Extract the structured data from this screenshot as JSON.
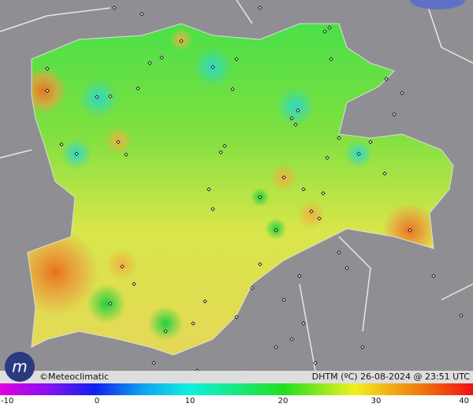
{
  "credit": "©Meteoclimatic",
  "caption": "DHTM (ºC) 26-08-2024 @ 23:51 UTC",
  "colorbar": {
    "range": [
      -10,
      40
    ],
    "ticks": [
      -10,
      0,
      10,
      20,
      30,
      40
    ]
  }
}
